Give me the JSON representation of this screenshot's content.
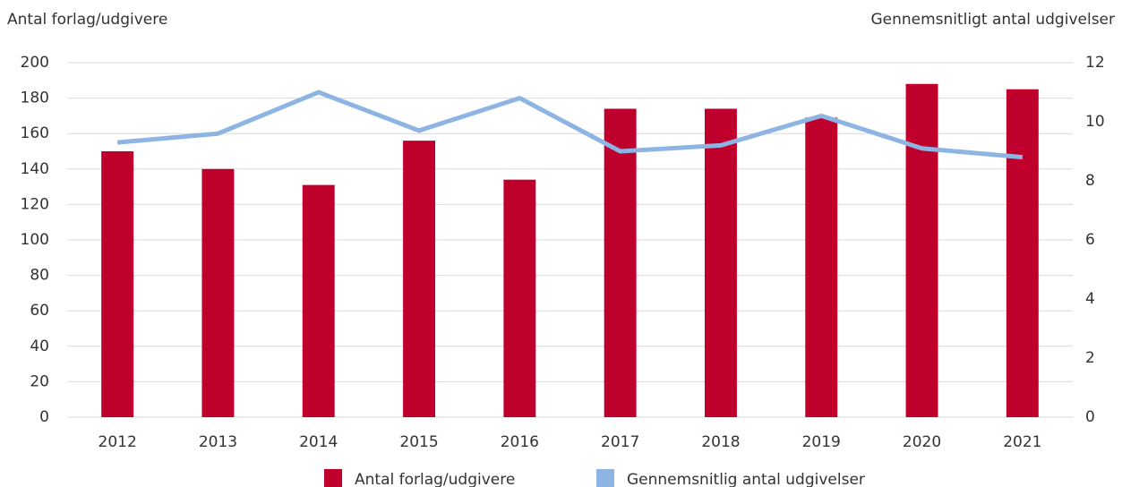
{
  "chart_data": {
    "type": "bar_line",
    "y_label": "Antal forlag/udgivere",
    "y2_label": "Gennemsnitligt antal udgivelser",
    "categories": [
      "2012",
      "2013",
      "2014",
      "2015",
      "2016",
      "2017",
      "2018",
      "2019",
      "2020",
      "2021"
    ],
    "series": [
      {
        "name": "Antal forlag/udgivere",
        "type": "bar",
        "color": "#c0002c",
        "values": [
          150,
          140,
          131,
          156,
          134,
          174,
          174,
          169,
          188,
          185
        ]
      },
      {
        "name": "Gennemsnitlig antal udgivelser",
        "type": "line",
        "axis": "y2",
        "color": "#8db4e2",
        "values": [
          9.3,
          9.6,
          11.0,
          9.7,
          10.8,
          9.0,
          9.2,
          10.2,
          9.1,
          8.8
        ]
      }
    ],
    "ylim": [
      0,
      200
    ],
    "yticks": [
      0,
      20,
      40,
      60,
      80,
      100,
      120,
      140,
      160,
      180,
      200
    ],
    "y2lim": [
      0,
      12
    ],
    "y2ticks": [
      0,
      2,
      4,
      6,
      8,
      10,
      12
    ],
    "grid": true,
    "legend": "bottom"
  }
}
